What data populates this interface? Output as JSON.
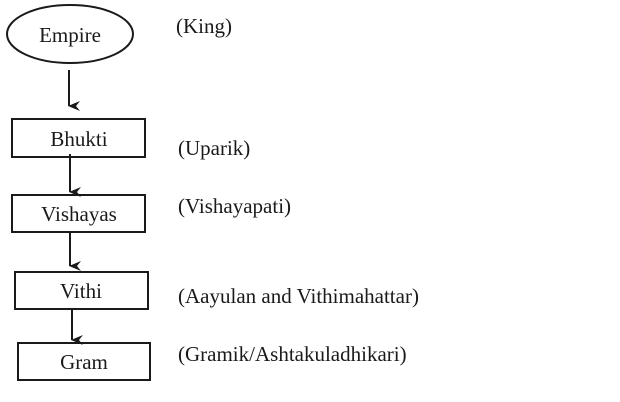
{
  "nodes": [
    {
      "label": "Empire",
      "official": "(King)",
      "shape": "ellipse"
    },
    {
      "label": "Bhukti",
      "official": "(Uparik)",
      "shape": "rectangle"
    },
    {
      "label": "Vishayas",
      "official": "(Vishayapati)",
      "shape": "rectangle"
    },
    {
      "label": "Vithi",
      "official": "(Aayulan and Vithimahattar)",
      "shape": "rectangle"
    },
    {
      "label": "Gram",
      "official": "(Gramik/Ashtakuladhikari)",
      "shape": "rectangle"
    }
  ],
  "colors": {
    "ink": "#1a1a1a",
    "background": "#ffffff"
  }
}
